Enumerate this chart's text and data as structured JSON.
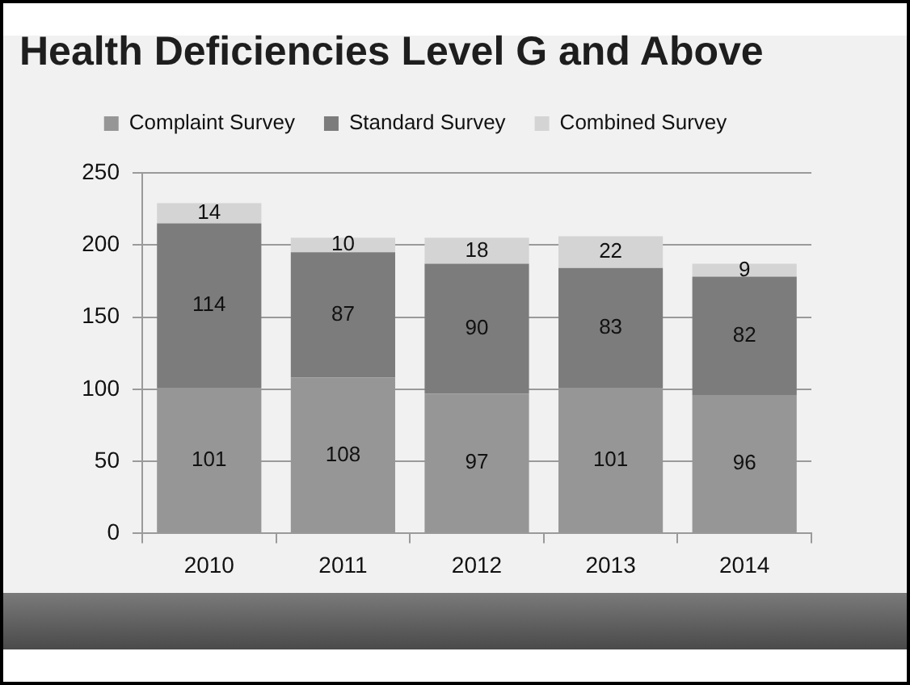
{
  "chart_data": {
    "type": "bar",
    "title": "Health Deficiencies Level G and Above",
    "categories": [
      "2010",
      "2011",
      "2012",
      "2013",
      "2014"
    ],
    "series": [
      {
        "name": "Complaint Survey",
        "color": "#969696",
        "values": [
          101,
          108,
          97,
          101,
          96
        ]
      },
      {
        "name": "Standard Survey",
        "color": "#7c7c7c",
        "values": [
          114,
          87,
          90,
          83,
          82
        ]
      },
      {
        "name": "Combined Survey",
        "color": "#d4d4d4",
        "values": [
          14,
          10,
          18,
          22,
          9
        ]
      }
    ],
    "stacked": true,
    "ylim": [
      0,
      250
    ],
    "yticks": [
      0,
      50,
      100,
      150,
      200,
      250
    ],
    "grid": "y",
    "legend": "top",
    "data_labels": true
  }
}
